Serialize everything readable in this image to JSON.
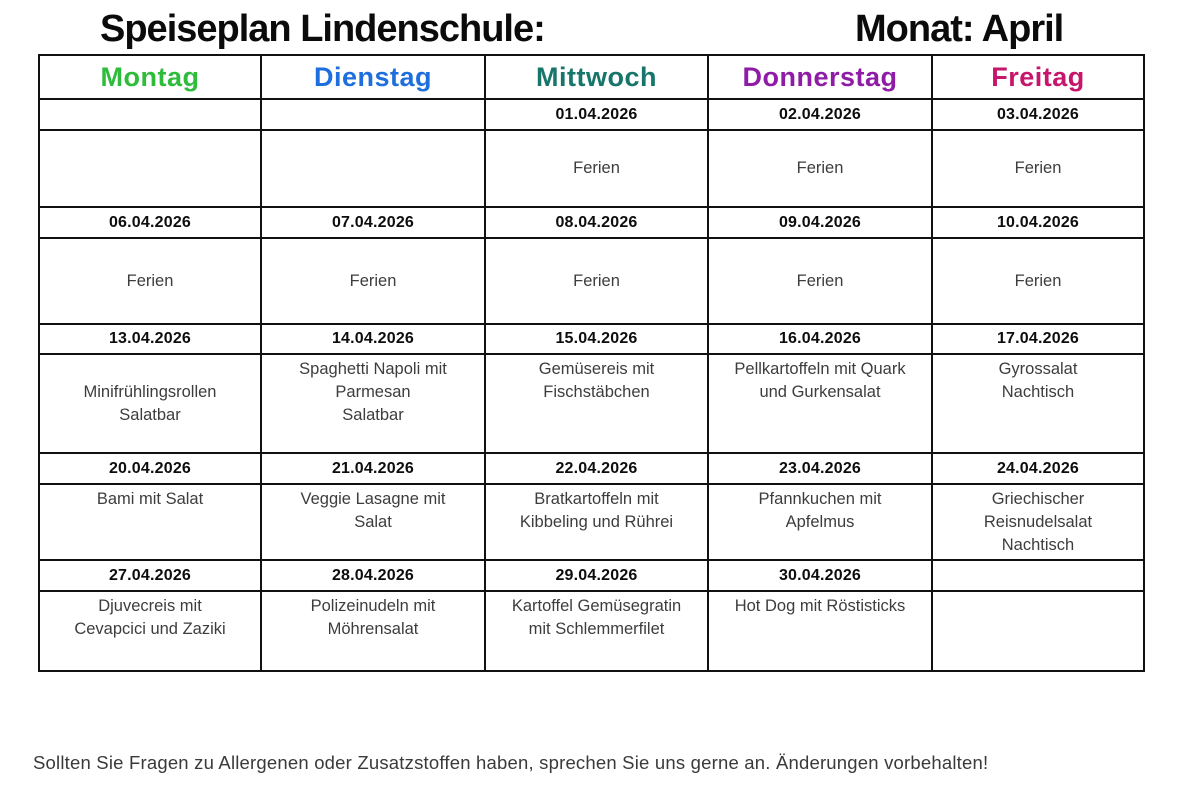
{
  "header": {
    "title": "Speiseplan Lindenschule:",
    "month": "Monat: April"
  },
  "days": [
    {
      "key": "montag",
      "label": "Montag",
      "color": "#2dbd3a"
    },
    {
      "key": "dienstag",
      "label": "Dienstag",
      "color": "#1e6fdd"
    },
    {
      "key": "mittwoch",
      "label": "Mittwoch",
      "color": "#17756a"
    },
    {
      "key": "donnerstag",
      "label": "Donnerstag",
      "color": "#8e1ca6"
    },
    {
      "key": "freitag",
      "label": "Freitag",
      "color": "#c6156a"
    }
  ],
  "weeks": [
    {
      "dates": [
        "",
        "",
        "01.04.2026",
        "02.04.2026",
        "03.04.2026"
      ],
      "meals": [
        [],
        [],
        [
          "Ferien"
        ],
        [
          "Ferien"
        ],
        [
          "Ferien"
        ]
      ]
    },
    {
      "dates": [
        "06.04.2026",
        "07.04.2026",
        "08.04.2026",
        "09.04.2026",
        "10.04.2026"
      ],
      "meals": [
        [
          "Ferien"
        ],
        [
          "Ferien"
        ],
        [
          "Ferien"
        ],
        [
          "Ferien"
        ],
        [
          "Ferien"
        ]
      ]
    },
    {
      "dates": [
        "13.04.2026",
        "14.04.2026",
        "15.04.2026",
        "16.04.2026",
        "17.04.2026"
      ],
      "meals": [
        [
          "",
          "Minifrühlingsrollen",
          "Salatbar"
        ],
        [
          "Spaghetti Napoli mit",
          "Parmesan",
          "Salatbar"
        ],
        [
          "Gemüsereis mit",
          "Fischstäbchen"
        ],
        [
          "Pellkartoffeln mit Quark",
          "und Gurkensalat"
        ],
        [
          "Gyrossalat",
          "Nachtisch"
        ]
      ]
    },
    {
      "dates": [
        "20.04.2026",
        "21.04.2026",
        "22.04.2026",
        "23.04.2026",
        "24.04.2026"
      ],
      "meals": [
        [
          "Bami mit Salat"
        ],
        [
          "Veggie Lasagne mit",
          "Salat"
        ],
        [
          "Bratkartoffeln mit",
          "Kibbeling und Rührei"
        ],
        [
          "Pfannkuchen mit",
          "Apfelmus"
        ],
        [
          "Griechischer",
          "Reisnudelsalat",
          "Nachtisch"
        ]
      ]
    },
    {
      "dates": [
        "27.04.2026",
        "28.04.2026",
        "29.04.2026",
        "30.04.2026",
        ""
      ],
      "meals": [
        [
          "Djuvecreis mit",
          "Cevapcici und Zaziki"
        ],
        [
          "Polizeinudeln mit",
          "Möhrensalat"
        ],
        [
          "Kartoffel Gemüsegratin",
          "mit Schlemmerfilet"
        ],
        [
          "Hot Dog mit Röstisticks"
        ],
        []
      ]
    }
  ],
  "footer": {
    "note": "Sollten Sie Fragen zu Allergenen oder Zusatzstoffen haben, sprechen Sie uns gerne an. Änderungen vorbehalten!"
  }
}
